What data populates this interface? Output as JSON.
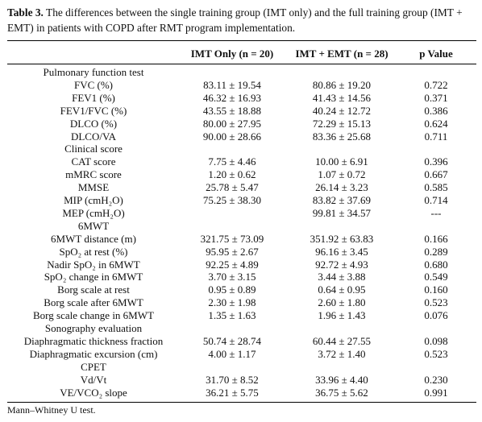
{
  "caption": {
    "label": "Table 3.",
    "text": "The differences between the single training group (IMT only) and the full training group (IMT + EMT) in patients with COPD after RMT program implementation."
  },
  "table": {
    "header": [
      "IMT Only (n = 20)",
      "IMT + EMT (n = 28)",
      "p Value"
    ],
    "rows": [
      {
        "section": "Pulmonary function test"
      },
      {
        "label": "FVC (%)",
        "imt_only": "83.11 ± 19.54",
        "imt_emt": "80.86 ± 19.20",
        "p": "0.722"
      },
      {
        "label": "FEV1 (%)",
        "imt_only": "46.32 ± 16.93",
        "imt_emt": "41.43 ± 14.56",
        "p": "0.371"
      },
      {
        "label": "FEV1/FVC (%)",
        "imt_only": "43.55 ± 18.88",
        "imt_emt": "40.24 ± 12.72",
        "p": "0.386"
      },
      {
        "label": "DLCO (%)",
        "imt_only": "80.00 ± 27.95",
        "imt_emt": "72.29 ± 15.13",
        "p": "0.624"
      },
      {
        "label": "DLCO/VA",
        "imt_only": "90.00 ± 28.66",
        "imt_emt": "83.36 ± 25.68",
        "p": "0.711"
      },
      {
        "section": "Clinical score"
      },
      {
        "label": "CAT score",
        "imt_only": "7.75 ± 4.46",
        "imt_emt": "10.00 ± 6.91",
        "p": "0.396"
      },
      {
        "label": "mMRC score",
        "imt_only": "1.20 ± 0.62",
        "imt_emt": "1.07 ± 0.72",
        "p": "0.667"
      },
      {
        "label": "MMSE",
        "imt_only": "25.78 ± 5.47",
        "imt_emt": "26.14 ± 3.23",
        "p": "0.585"
      },
      {
        "label": "MIP (cmH₂O)",
        "imt_only": "75.25 ± 38.30",
        "imt_emt": "83.82 ± 37.69",
        "p": "0.714"
      },
      {
        "label": "MEP (cmH₂O)",
        "imt_emt": "99.81 ± 34.57",
        "p": "---"
      },
      {
        "section": "6MWT"
      },
      {
        "label": "6MWT distance (m)",
        "imt_only": "321.75 ± 73.09",
        "imt_emt": "351.92 ± 63.83",
        "p": "0.166"
      },
      {
        "label": "SpO₂ at rest (%)",
        "imt_only": "95.95 ± 2.67",
        "imt_emt": "96.16 ± 3.45",
        "p": "0.289"
      },
      {
        "label": "Nadir SpO₂ in 6MWT",
        "imt_only": "92.25 ± 4.89",
        "imt_emt": "92.72 ± 4.93",
        "p": "0.680"
      },
      {
        "label": "SpO₂ change in 6MWT",
        "imt_only": "3.70 ± 3.15",
        "imt_emt": "3.44 ± 3.88",
        "p": "0.549"
      },
      {
        "label": "Borg scale at rest",
        "imt_only": "0.95 ± 0.89",
        "imt_emt": "0.64 ± 0.95",
        "p": "0.160"
      },
      {
        "label": "Borg scale after 6MWT",
        "imt_only": "2.30 ± 1.98",
        "imt_emt": "2.60 ± 1.80",
        "p": "0.523"
      },
      {
        "label": "Borg scale change in 6MWT",
        "imt_only": "1.35 ± 1.63",
        "imt_emt": "1.96 ± 1.43",
        "p": "0.076"
      },
      {
        "section": "Sonography evaluation"
      },
      {
        "label": "Diaphragmatic thickness fraction",
        "imt_only": "50.74 ± 28.74",
        "imt_emt": "60.44 ± 27.55",
        "p": "0.098"
      },
      {
        "label": "Diaphragmatic excursion (cm)",
        "imt_only": "4.00 ± 1.17",
        "imt_emt": "3.72 ± 1.40",
        "p": "0.523"
      },
      {
        "section": "CPET"
      },
      {
        "label": "Vd/Vt",
        "imt_only": "31.70 ± 8.52",
        "imt_emt": "33.96 ± 4.40",
        "p": "0.230"
      },
      {
        "label": "VE/VCO₂ slope",
        "imt_only": "36.21 ± 5.75",
        "imt_emt": "36.75 ± 5.62",
        "p": "0.991"
      }
    ],
    "footnote": "Mann–Whitney U test."
  }
}
